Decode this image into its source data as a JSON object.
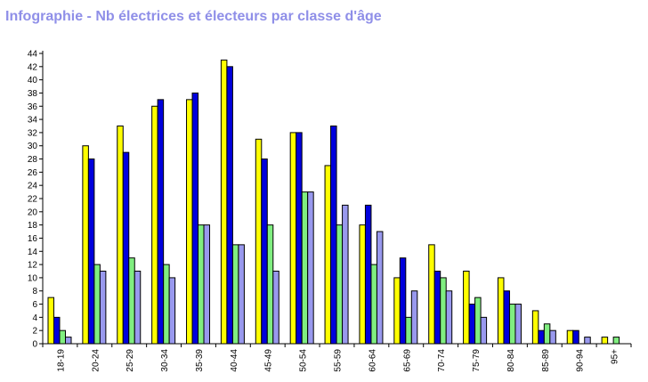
{
  "chart_data": {
    "type": "bar",
    "title": "Infographie - Nb électrices et électeurs par classe d'âge",
    "categories": [
      "18-19",
      "20-24",
      "25-29",
      "30-34",
      "35-39",
      "40-44",
      "45-49",
      "50-54",
      "55-59",
      "60-64",
      "65-69",
      "70-74",
      "75-79",
      "80-84",
      "85-89",
      "90-94",
      "95+"
    ],
    "series": [
      {
        "color": "#ffff00",
        "values": [
          7,
          30,
          33,
          36,
          37,
          43,
          31,
          32,
          27,
          18,
          10,
          15,
          11,
          10,
          5,
          2,
          1
        ]
      },
      {
        "color": "#0000dd",
        "values": [
          4,
          28,
          29,
          37,
          38,
          42,
          28,
          32,
          33,
          21,
          13,
          11,
          6,
          8,
          2,
          2,
          0
        ]
      },
      {
        "color": "#80ee80",
        "values": [
          2,
          12,
          13,
          12,
          18,
          15,
          18,
          23,
          18,
          12,
          4,
          10,
          7,
          6,
          3,
          0,
          1
        ]
      },
      {
        "color": "#9999ee",
        "values": [
          1,
          11,
          11,
          10,
          18,
          15,
          11,
          23,
          21,
          17,
          8,
          8,
          4,
          6,
          2,
          1,
          0
        ]
      }
    ],
    "yticks": [
      "0",
      "2",
      "4",
      "6",
      "8",
      "10",
      "12",
      "14",
      "16",
      "18",
      "20",
      "22",
      "24",
      "26",
      "28",
      "30",
      "32",
      "34",
      "36",
      "38",
      "40",
      "42",
      "44"
    ],
    "ylim": [
      0,
      44
    ],
    "grid": false,
    "xlabel": "",
    "ylabel": ""
  }
}
